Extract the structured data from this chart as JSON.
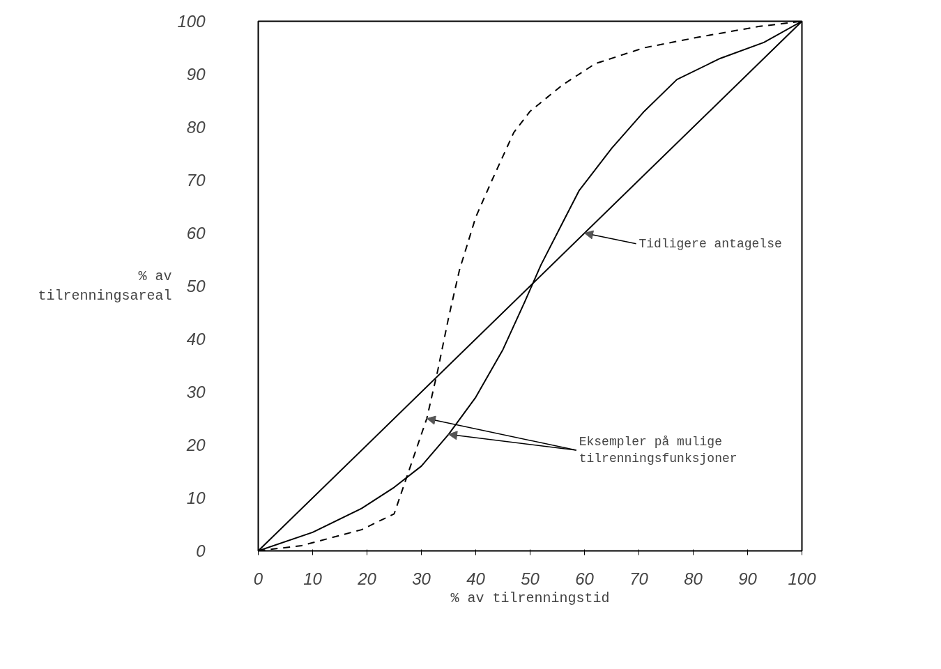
{
  "chart_data": {
    "type": "line",
    "xlabel": "% av tilrenningstid",
    "ylabel": "% av\ntilrenningsareal",
    "xlim": [
      0,
      100
    ],
    "ylim": [
      0,
      100
    ],
    "xticks": [
      0,
      10,
      20,
      30,
      40,
      50,
      60,
      70,
      80,
      90,
      100
    ],
    "yticks": [
      0,
      10,
      20,
      30,
      40,
      50,
      60,
      70,
      80,
      90,
      100
    ],
    "grid": false,
    "marker": "none",
    "series": [
      {
        "color": "#000000",
        "line_style": "solid",
        "x": [
          0,
          100
        ],
        "values": [
          0,
          100
        ]
      },
      {
        "color": "#000000",
        "line_style": "solid",
        "x": [
          0,
          10,
          19,
          25,
          30,
          35,
          40,
          45,
          49,
          52,
          56,
          59,
          65,
          71,
          77,
          85,
          93,
          100
        ],
        "values": [
          0,
          3.5,
          8,
          12,
          16,
          22,
          29,
          38,
          47,
          54,
          62,
          68,
          76,
          83,
          89,
          93,
          96,
          100
        ]
      },
      {
        "color": "#000000",
        "line_style": "dashed",
        "x": [
          0,
          8,
          19,
          25,
          28,
          31,
          33,
          35,
          37,
          40,
          43,
          47,
          50,
          56,
          62,
          71,
          81,
          92,
          100
        ],
        "values": [
          0,
          1,
          4,
          7,
          16,
          25,
          34,
          44,
          53,
          63,
          70,
          79,
          83,
          88,
          92,
          95,
          97,
          99,
          100
        ]
      }
    ],
    "annotations": [
      {
        "text": "Tidligere antagelse",
        "x": 60,
        "y": 60
      },
      {
        "text": "Eksempler på mulige\ntilrenningsfunksjoner",
        "x": 35,
        "y": 22
      }
    ]
  }
}
